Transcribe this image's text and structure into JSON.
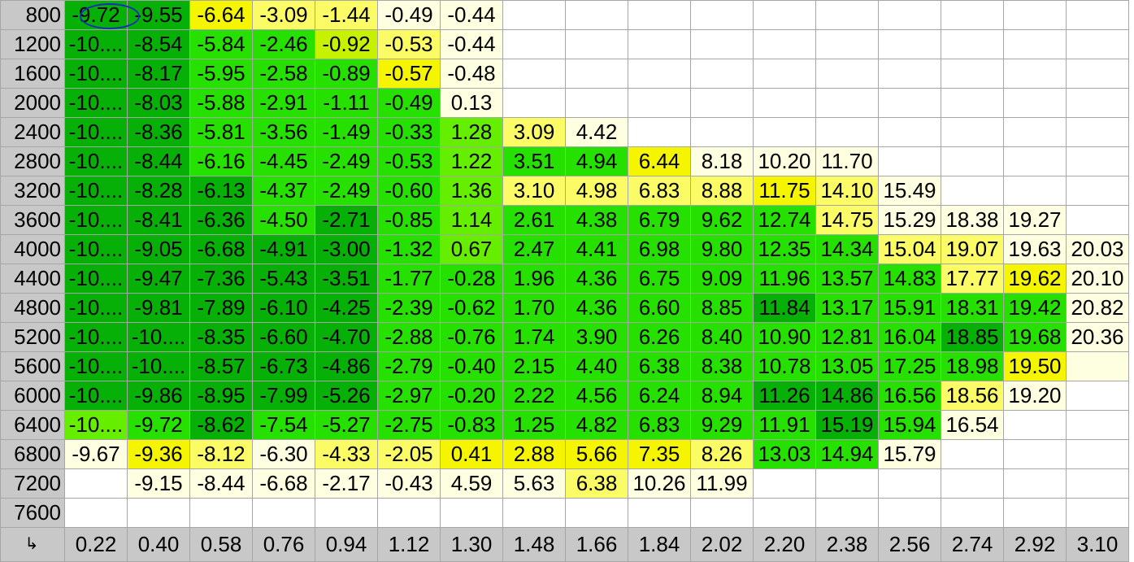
{
  "table": {
    "corner_icon": "corner-arrow-icon",
    "corner_glyph": "↳",
    "column_headers": [
      "0.22",
      "0.40",
      "0.58",
      "0.76",
      "0.94",
      "1.12",
      "1.30",
      "1.48",
      "1.66",
      "1.84",
      "2.02",
      "2.20",
      "2.38",
      "2.56",
      "2.74",
      "2.92",
      "3.10"
    ],
    "rows": [
      {
        "label": "800",
        "cells": [
          "-9.72",
          "-9.55",
          "-6.64",
          "-3.09",
          "-1.44",
          "-0.49",
          "-0.44",
          "",
          "",
          "",
          "",
          "",
          "",
          "",
          "",
          "",
          ""
        ]
      },
      {
        "label": "1200",
        "cells": [
          "-10....",
          "-8.54",
          "-5.84",
          "-2.46",
          "-0.92",
          "-0.53",
          "-0.44",
          "",
          "",
          "",
          "",
          "",
          "",
          "",
          "",
          "",
          ""
        ]
      },
      {
        "label": "1600",
        "cells": [
          "-10....",
          "-8.17",
          "-5.95",
          "-2.58",
          "-0.89",
          "-0.57",
          "-0.48",
          "",
          "",
          "",
          "",
          "",
          "",
          "",
          "",
          "",
          ""
        ]
      },
      {
        "label": "2000",
        "cells": [
          "-10....",
          "-8.03",
          "-5.88",
          "-2.91",
          "-1.11",
          "-0.49",
          "0.13",
          "",
          "",
          "",
          "",
          "",
          "",
          "",
          "",
          "",
          ""
        ]
      },
      {
        "label": "2400",
        "cells": [
          "-10....",
          "-8.36",
          "-5.81",
          "-3.56",
          "-1.49",
          "-0.33",
          "1.28",
          "3.09",
          "4.42",
          "",
          "",
          "",
          "",
          "",
          "",
          "",
          ""
        ]
      },
      {
        "label": "2800",
        "cells": [
          "-10....",
          "-8.44",
          "-6.16",
          "-4.45",
          "-2.49",
          "-0.53",
          "1.22",
          "3.51",
          "4.94",
          "6.44",
          "8.18",
          "10.20",
          "11.70",
          "",
          "",
          "",
          ""
        ]
      },
      {
        "label": "3200",
        "cells": [
          "-10....",
          "-8.28",
          "-6.13",
          "-4.37",
          "-2.49",
          "-0.60",
          "1.36",
          "3.10",
          "4.98",
          "6.83",
          "8.88",
          "11.75",
          "14.10",
          "15.49",
          "",
          "",
          ""
        ]
      },
      {
        "label": "3600",
        "cells": [
          "-10....",
          "-8.41",
          "-6.36",
          "-4.50",
          "-2.71",
          "-0.85",
          "1.14",
          "2.61",
          "4.38",
          "6.79",
          "9.62",
          "12.74",
          "14.75",
          "15.29",
          "18.38",
          "19.27",
          ""
        ]
      },
      {
        "label": "4000",
        "cells": [
          "-10....",
          "-9.05",
          "-6.68",
          "-4.91",
          "-3.00",
          "-1.32",
          "0.67",
          "2.47",
          "4.41",
          "6.98",
          "9.80",
          "12.35",
          "14.34",
          "15.04",
          "19.07",
          "19.63",
          "20.03"
        ]
      },
      {
        "label": "4400",
        "cells": [
          "-10....",
          "-9.47",
          "-7.36",
          "-5.43",
          "-3.51",
          "-1.77",
          "-0.28",
          "1.96",
          "4.36",
          "6.75",
          "9.09",
          "11.96",
          "13.57",
          "14.83",
          "17.77",
          "19.62",
          "20.10"
        ]
      },
      {
        "label": "4800",
        "cells": [
          "-10....",
          "-9.81",
          "-7.89",
          "-6.10",
          "-4.25",
          "-2.39",
          "-0.62",
          "1.70",
          "4.36",
          "6.60",
          "8.85",
          "11.84",
          "13.17",
          "15.91",
          "18.31",
          "19.42",
          "20.82"
        ]
      },
      {
        "label": "5200",
        "cells": [
          "-10....",
          "-10....",
          "-8.35",
          "-6.60",
          "-4.70",
          "-2.88",
          "-0.76",
          "1.74",
          "3.90",
          "6.26",
          "8.40",
          "10.90",
          "12.81",
          "16.04",
          "18.85",
          "19.68",
          "20.36"
        ]
      },
      {
        "label": "5600",
        "cells": [
          "-10....",
          "-10....",
          "-8.57",
          "-6.73",
          "-4.86",
          "-2.79",
          "-0.40",
          "2.15",
          "4.40",
          "6.38",
          "8.38",
          "10.78",
          "13.05",
          "17.25",
          "18.98",
          "19.50",
          ""
        ]
      },
      {
        "label": "6000",
        "cells": [
          "-10....",
          "-9.86",
          "-8.95",
          "-7.99",
          "-5.26",
          "-2.97",
          "-0.20",
          "2.22",
          "4.56",
          "6.24",
          "8.94",
          "11.26",
          "14.86",
          "16.56",
          "18.56",
          "19.20",
          ""
        ]
      },
      {
        "label": "6400",
        "cells": [
          "-10....",
          "-9.72",
          "-8.62",
          "-7.54",
          "-5.27",
          "-2.75",
          "-0.83",
          "1.25",
          "4.82",
          "6.83",
          "9.29",
          "11.91",
          "15.19",
          "15.94",
          "16.54",
          "",
          ""
        ]
      },
      {
        "label": "6800",
        "cells": [
          "-9.67",
          "-9.36",
          "-8.12",
          "-6.30",
          "-4.33",
          "-2.05",
          "0.41",
          "2.88",
          "5.66",
          "7.35",
          "8.26",
          "13.03",
          "14.94",
          "15.79",
          "",
          "",
          ""
        ]
      },
      {
        "label": "7200",
        "cells": [
          "",
          "-9.15",
          "-8.44",
          "-6.68",
          "-2.17",
          "-0.43",
          "4.59",
          "5.63",
          "6.38",
          "10.26",
          "11.99",
          "",
          "",
          "",
          "",
          "",
          ""
        ]
      },
      {
        "label": "7600",
        "cells": [
          "",
          "",
          "",
          "",
          "",
          "",
          "",
          "",
          "",
          "",
          "",
          "",
          "",
          "",
          "",
          "",
          ""
        ]
      }
    ],
    "colors": [
      [
        "dg",
        "dg",
        "Y",
        "y",
        "y",
        "w",
        "w",
        "",
        "",
        "",
        "",
        "",
        "",
        "",
        "",
        "",
        ""
      ],
      [
        "dg",
        "dg",
        "g",
        "g",
        "yg",
        "y",
        "w",
        "",
        "",
        "",
        "",
        "",
        "",
        "",
        "",
        "",
        ""
      ],
      [
        "dg",
        "dg",
        "g",
        "g",
        "g",
        "Y",
        "w",
        "",
        "",
        "",
        "",
        "",
        "",
        "",
        "",
        "",
        ""
      ],
      [
        "dg",
        "dg",
        "g",
        "g",
        "g",
        "g",
        "w",
        "",
        "",
        "",
        "",
        "",
        "",
        "",
        "",
        "",
        ""
      ],
      [
        "dg",
        "dg",
        "g",
        "g",
        "g",
        "g",
        "lg",
        "y",
        "w",
        "",
        "",
        "",
        "",
        "",
        "",
        "",
        ""
      ],
      [
        "dg",
        "dg",
        "g",
        "g",
        "g",
        "g",
        "lg",
        "g",
        "g",
        "Y",
        "w",
        "w",
        "w",
        "",
        "",
        "",
        ""
      ],
      [
        "dg",
        "dg",
        "dg",
        "g",
        "g",
        "g",
        "lg",
        "y",
        "y",
        "y",
        "y",
        "Y",
        "y",
        "w",
        "",
        "",
        ""
      ],
      [
        "dg",
        "dg",
        "dg",
        "g",
        "dg",
        "g",
        "lg",
        "g",
        "g",
        "g",
        "g",
        "g",
        "y",
        "w",
        "w",
        "w",
        ""
      ],
      [
        "dg",
        "dg",
        "dg",
        "dg",
        "dg",
        "g",
        "lg",
        "g",
        "g",
        "g",
        "g",
        "g",
        "g",
        "y",
        "y",
        "w",
        "w"
      ],
      [
        "dg",
        "dg",
        "dg",
        "dg",
        "dg",
        "g",
        "g",
        "g",
        "g",
        "g",
        "g",
        "g",
        "g",
        "g",
        "y",
        "Y",
        "w"
      ],
      [
        "dg",
        "dg",
        "dg",
        "dg",
        "dg",
        "g",
        "g",
        "g",
        "g",
        "g",
        "g",
        "dg",
        "g",
        "g",
        "g",
        "g",
        "w"
      ],
      [
        "dg",
        "dg",
        "dg",
        "dg",
        "dg",
        "g",
        "g",
        "g",
        "g",
        "g",
        "g",
        "g",
        "g",
        "g",
        "dg",
        "g",
        "w"
      ],
      [
        "dg",
        "dg",
        "dg",
        "dg",
        "dg",
        "g",
        "g",
        "g",
        "g",
        "g",
        "g",
        "g",
        "g",
        "g",
        "g",
        "Y",
        "w"
      ],
      [
        "dg",
        "dg",
        "dg",
        "dg",
        "dg",
        "g",
        "g",
        "g",
        "g",
        "g",
        "g",
        "dg",
        "dg",
        "g",
        "y",
        "w",
        ""
      ],
      [
        "lg",
        "g",
        "dg",
        "g",
        "g",
        "g",
        "g",
        "g",
        "g",
        "g",
        "g",
        "g",
        "dg",
        "g",
        "w",
        "",
        ""
      ],
      [
        "w",
        "Y",
        "y",
        "w",
        "y",
        "y",
        "Y",
        "Y",
        "Y",
        "Y",
        "y",
        "g",
        "g",
        "w",
        "",
        "",
        ""
      ],
      [
        "",
        "w",
        "w",
        "w",
        "w",
        "w",
        "w",
        "w",
        "y",
        "w",
        "w",
        "",
        "",
        "",
        "",
        "",
        ""
      ],
      [
        "",
        "",
        "",
        "",
        "",
        "",
        "",
        "",
        "",
        "",
        "",
        "",
        "",
        "",
        "",
        "",
        ""
      ]
    ],
    "palette": {
      "dg": "#07b007",
      "g": "#26e000",
      "lg": "#66ee00",
      "yg": "#c6f200",
      "Y": "#f5f500",
      "y": "#fbfb66",
      "w": "#fefee0",
      "": "#ffffff"
    }
  }
}
